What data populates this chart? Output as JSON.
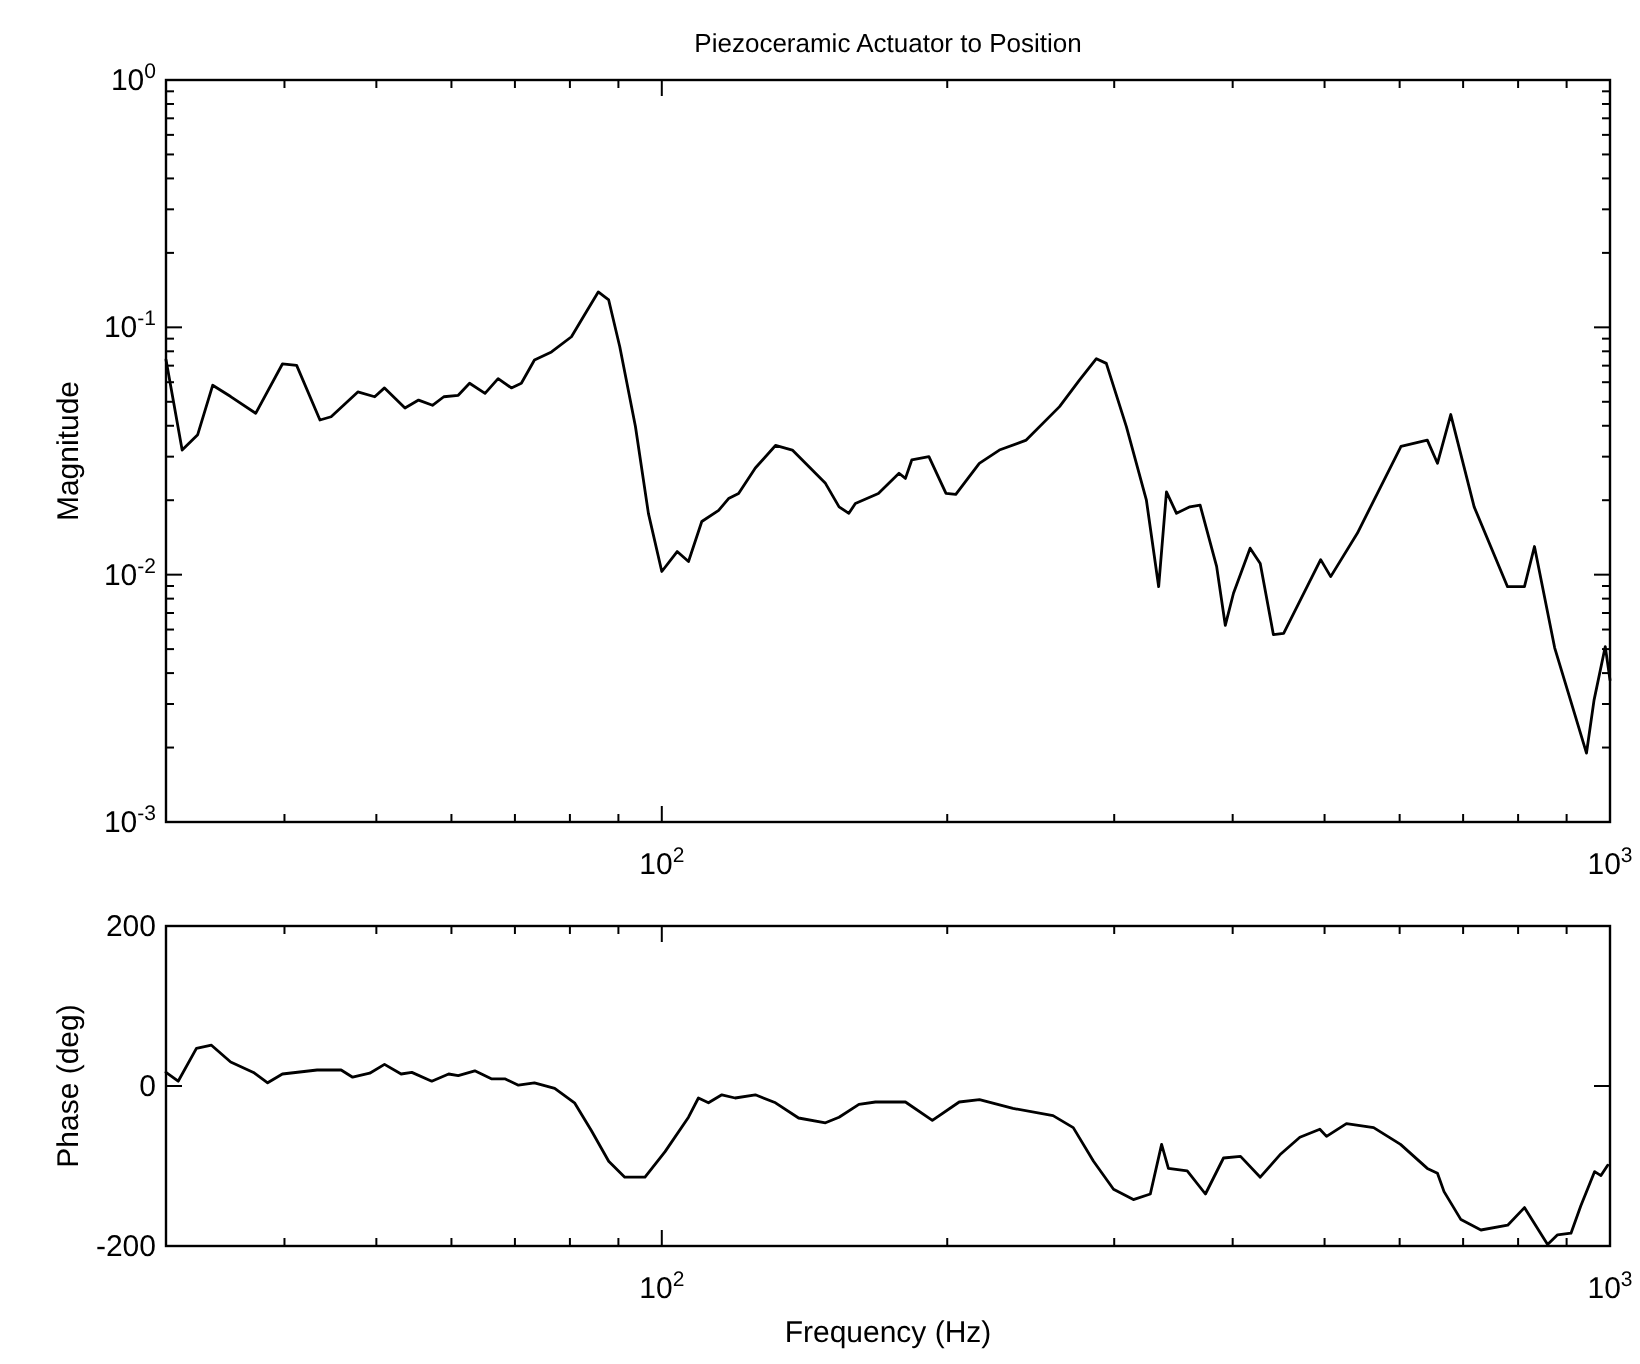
{
  "chart_data": [
    {
      "type": "line",
      "title": "Piezoceramic Actuator to Position",
      "ylabel": "Magnitude",
      "log": "xy",
      "xlim": [
        30,
        1000
      ],
      "ylim": [
        0.001,
        1
      ],
      "xticks": [
        {
          "value": 40,
          "label": null
        },
        {
          "value": 50,
          "label": null
        },
        {
          "value": 60,
          "label": null
        },
        {
          "value": 70,
          "label": null
        },
        {
          "value": 80,
          "label": null
        },
        {
          "value": 90,
          "label": null
        },
        {
          "value": 100,
          "label": "10$^{2}$"
        },
        {
          "value": 200,
          "label": null
        },
        {
          "value": 300,
          "label": null
        },
        {
          "value": 400,
          "label": null
        },
        {
          "value": 500,
          "label": null
        },
        {
          "value": 600,
          "label": null
        },
        {
          "value": 700,
          "label": null
        },
        {
          "value": 800,
          "label": null
        },
        {
          "value": 900,
          "label": null
        },
        {
          "value": 1000,
          "label": "10$^{3}$"
        }
      ],
      "yticks": [
        {
          "value": 0.001,
          "label": "10$^{-3}$"
        },
        {
          "value": 0.002,
          "label": null
        },
        {
          "value": 0.003,
          "label": null
        },
        {
          "value": 0.004,
          "label": null
        },
        {
          "value": 0.005,
          "label": null
        },
        {
          "value": 0.006,
          "label": null
        },
        {
          "value": 0.007,
          "label": null
        },
        {
          "value": 0.008,
          "label": null
        },
        {
          "value": 0.009,
          "label": null
        },
        {
          "value": 0.01,
          "label": "10$^{-2}$"
        },
        {
          "value": 0.02,
          "label": null
        },
        {
          "value": 0.03,
          "label": null
        },
        {
          "value": 0.04,
          "label": null
        },
        {
          "value": 0.05,
          "label": null
        },
        {
          "value": 0.06,
          "label": null
        },
        {
          "value": 0.07,
          "label": null
        },
        {
          "value": 0.08,
          "label": null
        },
        {
          "value": 0.09,
          "label": null
        },
        {
          "value": 0.1,
          "label": "10$^{-1}$"
        },
        {
          "value": 0.2,
          "label": null
        },
        {
          "value": 0.3,
          "label": null
        },
        {
          "value": 0.4,
          "label": null
        },
        {
          "value": 0.5,
          "label": null
        },
        {
          "value": 0.6,
          "label": null
        },
        {
          "value": 0.7,
          "label": null
        },
        {
          "value": 0.8,
          "label": null
        },
        {
          "value": 0.9,
          "label": null
        },
        {
          "value": 1,
          "label": "10$^{0}$"
        }
      ],
      "series": [
        {
          "color": "#000000",
          "x": [
            30,
            31.2,
            32.4,
            33.6,
            35.1,
            37.3,
            39.8,
            41.2,
            43.6,
            44.8,
            47.8,
            49.8,
            51,
            53.6,
            55.4,
            57.3,
            58.9,
            61,
            62.7,
            65.1,
            67.2,
            69.4,
            71.1,
            73.4,
            76.5,
            80.3,
            82.9,
            85.7,
            87.9,
            90.3,
            93.8,
            96.8,
            100,
            103.8,
            106.7,
            110.2,
            114.8,
            117.6,
            120.5,
            125.5,
            131.8,
            137.3,
            148.8,
            153.8,
            157.5,
            160,
            169.2,
            177.9,
            180.7,
            183.5,
            191.3,
            199.4,
            204.2,
            216.2,
            227,
            242.3,
            262.7,
            275.7,
            287.3,
            294.3,
            309,
            324.4,
            334.2,
            340.6,
            349,
            360.5,
            369.6,
            384.7,
            392.9,
            400.8,
            417.3,
            427.7,
            441.6,
            452.7,
            495.3,
            507.5,
            541.4,
            602,
            641.7,
            657.7,
            679.3,
            719,
            779.7,
            812.4,
            832.4,
            874.3,
            917.4,
            944.5,
            962,
            988.6,
            1000
          ],
          "values": [
            0.074,
            0.0319,
            0.0368,
            0.0583,
            0.0525,
            0.0449,
            0.0711,
            0.0702,
            0.0422,
            0.0435,
            0.0548,
            0.0524,
            0.0569,
            0.0472,
            0.0508,
            0.0484,
            0.0524,
            0.0531,
            0.0594,
            0.0541,
            0.062,
            0.0569,
            0.0594,
            0.0738,
            0.0795,
            0.0916,
            0.1125,
            0.139,
            0.129,
            0.0835,
            0.0397,
            0.0177,
            0.0103,
            0.0124,
            0.0113,
            0.0164,
            0.0182,
            0.0203,
            0.0213,
            0.027,
            0.0333,
            0.0319,
            0.0234,
            0.0188,
            0.0177,
            0.0194,
            0.0213,
            0.0257,
            0.0245,
            0.0291,
            0.03,
            0.0213,
            0.0211,
            0.0282,
            0.0319,
            0.035,
            0.0478,
            0.0612,
            0.0747,
            0.0715,
            0.0397,
            0.02,
            0.00894,
            0.0216,
            0.0177,
            0.0188,
            0.0191,
            0.0108,
            0.00624,
            0.00841,
            0.0128,
            0.0111,
            0.00572,
            0.00579,
            0.0115,
            0.00982,
            0.0147,
            0.033,
            0.035,
            0.0282,
            0.0444,
            0.0188,
            0.00894,
            0.00894,
            0.013,
            0.00506,
            0.00275,
            0.0019,
            0.00311,
            0.00512,
            0.00375
          ]
        }
      ]
    },
    {
      "type": "line",
      "xlabel": "Frequency (Hz)",
      "ylabel": "Phase (deg)",
      "log": "x",
      "xlim": [
        30,
        1000
      ],
      "ylim": [
        -200,
        200
      ],
      "xticks": [
        {
          "value": 40,
          "label": null
        },
        {
          "value": 50,
          "label": null
        },
        {
          "value": 60,
          "label": null
        },
        {
          "value": 70,
          "label": null
        },
        {
          "value": 80,
          "label": null
        },
        {
          "value": 90,
          "label": null
        },
        {
          "value": 100,
          "label": "10$^{2}$"
        },
        {
          "value": 200,
          "label": null
        },
        {
          "value": 300,
          "label": null
        },
        {
          "value": 400,
          "label": null
        },
        {
          "value": 500,
          "label": null
        },
        {
          "value": 600,
          "label": null
        },
        {
          "value": 700,
          "label": null
        },
        {
          "value": 800,
          "label": null
        },
        {
          "value": 900,
          "label": null
        },
        {
          "value": 1000,
          "label": "10$^{3}$"
        }
      ],
      "yticks": [
        -200,
        0,
        200
      ],
      "series": [
        {
          "color": "#000000",
          "x": [
            30,
            30.9,
            32.3,
            33.5,
            35.1,
            37.1,
            38.4,
            39.8,
            43.3,
            45.9,
            47.2,
            49.2,
            51,
            53.1,
            54.5,
            57.2,
            59.6,
            61,
            63.5,
            66.1,
            68.3,
            70.6,
            73.4,
            77.1,
            80.9,
            84.3,
            87.9,
            91.4,
            96,
            100.8,
            106.7,
            109.3,
            112,
            115.7,
            119.5,
            125.5,
            131.8,
            139.4,
            148.8,
            153.8,
            161.4,
            168,
            180.7,
            192.9,
            205.9,
            216.3,
            234.6,
            258.6,
            271.6,
            285.3,
            299.5,
            314.3,
            327.5,
            336.6,
            342.2,
            358.2,
            374.4,
            391.2,
            407.7,
            427.7,
            448.6,
            470.9,
            494.3,
            502.4,
            527.3,
            563.3,
            601.3,
            641.7,
            657.7,
            668.3,
            696.3,
            730.9,
            780,
            812.4,
            825.4,
            859.4,
            880.4,
            909.6,
            931.4,
            963.4,
            978.3,
            994.4
          ],
          "values": [
            17,
            6,
            47,
            51,
            30,
            17,
            4,
            15,
            20,
            20,
            11,
            16,
            27,
            15,
            17,
            6,
            15,
            13,
            19,
            9,
            9,
            1,
            4,
            -3,
            -21,
            -56,
            -94,
            -114,
            -114,
            -82,
            -39,
            -15,
            -21,
            -11,
            -15,
            -11,
            -21,
            -40,
            -46,
            -39,
            -23,
            -20,
            -20,
            -43,
            -20,
            -17,
            -28,
            -37,
            -52,
            -94,
            -129,
            -142,
            -135,
            -73,
            -103,
            -106,
            -135,
            -90,
            -88,
            -114,
            -86,
            -64,
            -54,
            -63,
            -47,
            -52,
            -73,
            -103,
            -109,
            -132,
            -167,
            -180,
            -174,
            -152,
            -165,
            -198,
            -186,
            -184,
            -150,
            -107,
            -112,
            -99
          ]
        }
      ]
    }
  ]
}
